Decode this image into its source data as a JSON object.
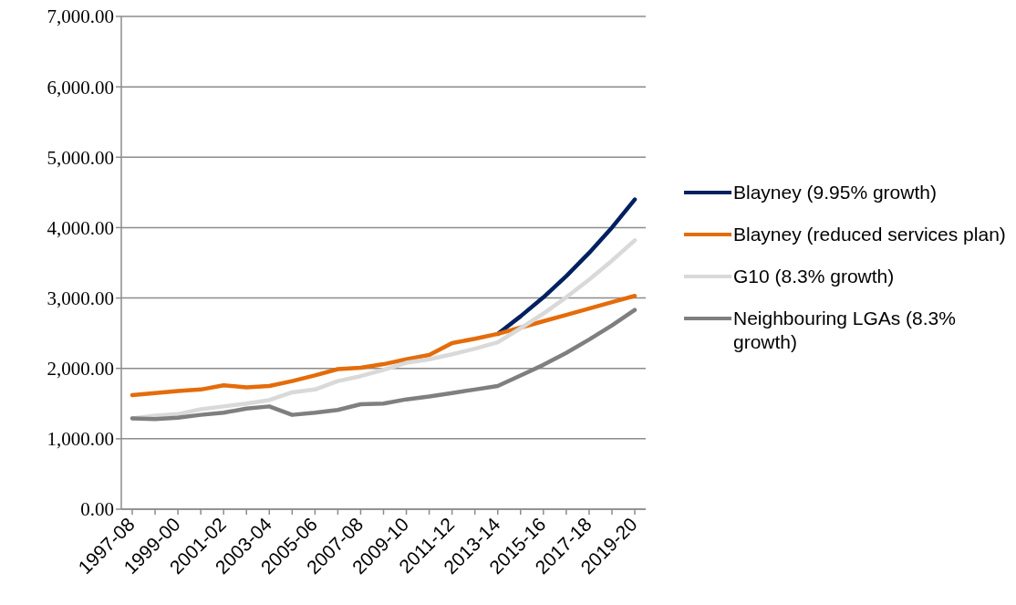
{
  "chart_data": {
    "type": "line",
    "categories": [
      "1997-08",
      null,
      "1999-00",
      null,
      "2001-02",
      null,
      "2003-04",
      null,
      "2005-06",
      null,
      "2007-08",
      null,
      "2009-10",
      null,
      "2011-12",
      null,
      "2013-14",
      null,
      "2015-16",
      null,
      "2017-18",
      null,
      "2019-20"
    ],
    "series": [
      {
        "name": "Blayney (9.95% growth)",
        "color": "#002060",
        "values": [
          null,
          null,
          null,
          null,
          null,
          null,
          null,
          null,
          null,
          null,
          null,
          null,
          null,
          null,
          null,
          null,
          2490,
          2740,
          3010,
          3310,
          3640,
          4000,
          4400
        ]
      },
      {
        "name": "Blayney (reduced services plan)",
        "color": "#e46c0a",
        "values": [
          1620,
          1650,
          1680,
          1700,
          1760,
          1730,
          1750,
          1820,
          1900,
          1990,
          2010,
          2060,
          2130,
          2190,
          2360,
          2420,
          2490,
          2580,
          2670,
          2760,
          2850,
          2940,
          3030
        ]
      },
      {
        "name": "G10 (8.3% growth)",
        "color": "#d9d9d9",
        "values": [
          1290,
          1330,
          1350,
          1420,
          1460,
          1500,
          1550,
          1660,
          1700,
          1820,
          1890,
          1980,
          2080,
          2130,
          2200,
          2280,
          2370,
          2570,
          2780,
          3010,
          3260,
          3530,
          3820
        ]
      },
      {
        "name": "Neighbouring LGAs (8.3% growth)",
        "color": "#7f7f7f",
        "values": [
          1290,
          1280,
          1300,
          1340,
          1370,
          1430,
          1460,
          1340,
          1370,
          1410,
          1490,
          1500,
          1560,
          1600,
          1650,
          1700,
          1750,
          1900,
          2050,
          2220,
          2410,
          2610,
          2830
        ]
      }
    ],
    "ylim": [
      0,
      7000
    ],
    "yticks": [
      {
        "value": 0,
        "label": "0.00"
      },
      {
        "value": 1000,
        "label": "1,000.00"
      },
      {
        "value": 2000,
        "label": "2,000.00"
      },
      {
        "value": 3000,
        "label": "3,000.00"
      },
      {
        "value": 4000,
        "label": "4,000.00"
      },
      {
        "value": 5000,
        "label": "5,000.00"
      },
      {
        "value": 6000,
        "label": "6,000.00"
      },
      {
        "value": 7000,
        "label": "7,000.00"
      }
    ],
    "grid": "y",
    "legend": "right",
    "marker": "none",
    "line_style": "solid"
  }
}
